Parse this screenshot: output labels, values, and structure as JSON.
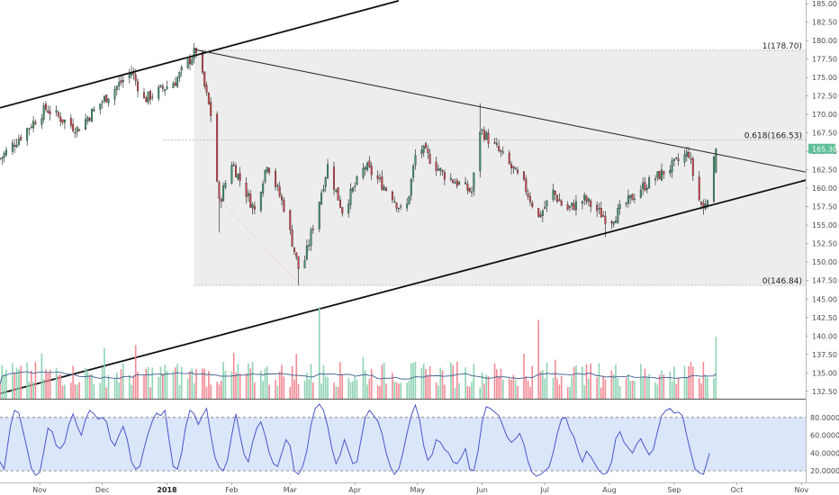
{
  "chart_data": {
    "type": "candlestick",
    "price_axis": {
      "range": [
        131.5,
        185.5
      ],
      "ticks": [
        "185.00",
        "182.50",
        "180.00",
        "177.50",
        "175.00",
        "172.50",
        "170.00",
        "167.50",
        "165.00",
        "162.50",
        "160.00",
        "157.50",
        "155.00",
        "152.50",
        "150.00",
        "147.50",
        "145.00",
        "142.50",
        "140.00",
        "137.50",
        "135.00",
        "132.50"
      ],
      "tick_values": [
        185,
        182.5,
        180,
        177.5,
        175,
        172.5,
        170,
        167.5,
        165,
        162.5,
        160,
        157.5,
        155,
        152.5,
        150,
        147.5,
        145,
        142.5,
        140,
        137.5,
        135,
        132.5
      ],
      "last_price_label": "165.30",
      "last_price": 165.3,
      "last_price_color": "#5fbf96"
    },
    "time_axis": {
      "labels": [
        "Nov",
        "Dec",
        "2018",
        "Feb",
        "Mar",
        "Apr",
        "May",
        "Jun",
        "Jul",
        "Aug",
        "Sep",
        "Oct",
        "Nov"
      ],
      "label_days": [
        -8,
        22,
        53,
        84,
        112,
        143,
        173,
        204,
        234,
        265,
        296,
        326,
        357
      ],
      "bold_labels": [
        "2018"
      ],
      "day_range": [
        -27,
        359
      ]
    },
    "fibonacci": [
      {
        "label": "1(178.70)",
        "value": 178.7
      },
      {
        "label": "0.618(166.53)",
        "value": 166.53
      },
      {
        "label": "0(146.84)",
        "value": 146.84
      }
    ],
    "trendlines": [
      {
        "name": "upper-channel",
        "from": [
          -27,
          170.9
        ],
        "to": [
          164,
          185.4
        ],
        "color": "#111111"
      },
      {
        "name": "descending-resistance",
        "from": [
          66,
          178.8
        ],
        "to": [
          359,
          162.2
        ],
        "color": "#333333"
      },
      {
        "name": "lower-channel",
        "from": [
          -27,
          132.2
        ],
        "to": [
          359,
          161.1
        ],
        "color": "#111111"
      }
    ],
    "anchors": [
      {
        "day": -27,
        "close": 164.0
      },
      {
        "day": -5,
        "close": 170.8
      },
      {
        "day": 10,
        "close": 168.0
      },
      {
        "day": 21,
        "close": 171.5
      },
      {
        "day": 36,
        "close": 175.8
      },
      {
        "day": 42,
        "close": 172.0
      },
      {
        "day": 57,
        "close": 174.5
      },
      {
        "day": 67,
        "close": 178.7
      },
      {
        "day": 74,
        "close": 170.0
      },
      {
        "day": 78,
        "close": 158.0
      },
      {
        "day": 84,
        "close": 163.5
      },
      {
        "day": 95,
        "close": 157.0
      },
      {
        "day": 101,
        "close": 163.5
      },
      {
        "day": 109,
        "close": 157.5
      },
      {
        "day": 117,
        "close": 148.0
      },
      {
        "day": 130,
        "close": 163.0
      },
      {
        "day": 137,
        "close": 157.0
      },
      {
        "day": 148,
        "close": 163.0
      },
      {
        "day": 161,
        "close": 159.0
      },
      {
        "day": 167,
        "close": 156.0
      },
      {
        "day": 173,
        "close": 166.0
      },
      {
        "day": 185,
        "close": 162.0
      },
      {
        "day": 199,
        "close": 159.5
      },
      {
        "day": 203,
        "close": 168.0
      },
      {
        "day": 212,
        "close": 165.0
      },
      {
        "day": 224,
        "close": 160.5
      },
      {
        "day": 231,
        "close": 156.0
      },
      {
        "day": 238,
        "close": 159.5
      },
      {
        "day": 244,
        "close": 157.0
      },
      {
        "day": 253,
        "close": 158.5
      },
      {
        "day": 265,
        "close": 155.5
      },
      {
        "day": 280,
        "close": 160.0
      },
      {
        "day": 295,
        "close": 163.0
      },
      {
        "day": 303,
        "close": 164.8
      },
      {
        "day": 307,
        "close": 159.0
      },
      {
        "day": 310,
        "close": 157.3
      },
      {
        "day": 313,
        "close": 160.0
      },
      {
        "day": 316,
        "close": 165.3
      }
    ],
    "volume_axis": {
      "range": [
        0,
        1
      ]
    },
    "stochastic": {
      "upper_band": 80,
      "lower_band": 20,
      "range": [
        8,
        98
      ],
      "ticks": [
        "80.0000",
        "60.0000",
        "40.0000",
        "20.0000"
      ],
      "tick_values": [
        80,
        60,
        40,
        20
      ],
      "band_fill": "#dbe6fb",
      "line_color": "#4a57c9",
      "points": [
        [
          -27,
          30
        ],
        [
          -25,
          22
        ],
        [
          -22,
          70
        ],
        [
          -20,
          88
        ],
        [
          -18,
          85
        ],
        [
          -15,
          55
        ],
        [
          -12,
          23
        ],
        [
          -10,
          15
        ],
        [
          -8,
          18
        ],
        [
          -6,
          42
        ],
        [
          -4,
          68
        ],
        [
          -2,
          64
        ],
        [
          0,
          48
        ],
        [
          2,
          45
        ],
        [
          4,
          52
        ],
        [
          6,
          72
        ],
        [
          8,
          84
        ],
        [
          10,
          70
        ],
        [
          12,
          60
        ],
        [
          14,
          78
        ],
        [
          16,
          88
        ],
        [
          18,
          84
        ],
        [
          20,
          78
        ],
        [
          22,
          80
        ],
        [
          24,
          75
        ],
        [
          26,
          55
        ],
        [
          28,
          48
        ],
        [
          30,
          60
        ],
        [
          32,
          70
        ],
        [
          34,
          55
        ],
        [
          36,
          30
        ],
        [
          38,
          22
        ],
        [
          40,
          25
        ],
        [
          42,
          45
        ],
        [
          44,
          62
        ],
        [
          46,
          76
        ],
        [
          48,
          85
        ],
        [
          50,
          82
        ],
        [
          52,
          88
        ],
        [
          54,
          55
        ],
        [
          56,
          25
        ],
        [
          58,
          22
        ],
        [
          60,
          40
        ],
        [
          62,
          70
        ],
        [
          64,
          88
        ],
        [
          66,
          84
        ],
        [
          68,
          72
        ],
        [
          70,
          82
        ],
        [
          72,
          90
        ],
        [
          74,
          60
        ],
        [
          76,
          35
        ],
        [
          78,
          24
        ],
        [
          80,
          20
        ],
        [
          82,
          32
        ],
        [
          84,
          60
        ],
        [
          86,
          84
        ],
        [
          88,
          60
        ],
        [
          90,
          38
        ],
        [
          92,
          30
        ],
        [
          94,
          52
        ],
        [
          96,
          68
        ],
        [
          98,
          75
        ],
        [
          100,
          60
        ],
        [
          102,
          40
        ],
        [
          104,
          28
        ],
        [
          106,
          25
        ],
        [
          108,
          40
        ],
        [
          110,
          55
        ],
        [
          112,
          48
        ],
        [
          114,
          20
        ],
        [
          116,
          16
        ],
        [
          118,
          25
        ],
        [
          120,
          42
        ],
        [
          122,
          72
        ],
        [
          124,
          90
        ],
        [
          126,
          95
        ],
        [
          128,
          88
        ],
        [
          130,
          70
        ],
        [
          132,
          45
        ],
        [
          134,
          28
        ],
        [
          136,
          38
        ],
        [
          138,
          55
        ],
        [
          140,
          42
        ],
        [
          142,
          28
        ],
        [
          144,
          30
        ],
        [
          146,
          55
        ],
        [
          148,
          80
        ],
        [
          150,
          88
        ],
        [
          152,
          82
        ],
        [
          154,
          76
        ],
        [
          156,
          62
        ],
        [
          158,
          40
        ],
        [
          160,
          25
        ],
        [
          162,
          16
        ],
        [
          164,
          22
        ],
        [
          166,
          40
        ],
        [
          168,
          62
        ],
        [
          170,
          82
        ],
        [
          172,
          94
        ],
        [
          174,
          78
        ],
        [
          176,
          48
        ],
        [
          178,
          32
        ],
        [
          180,
          38
        ],
        [
          182,
          55
        ],
        [
          184,
          52
        ],
        [
          186,
          44
        ],
        [
          188,
          40
        ],
        [
          190,
          30
        ],
        [
          192,
          28
        ],
        [
          194,
          35
        ],
        [
          196,
          45
        ],
        [
          198,
          22
        ],
        [
          200,
          20
        ],
        [
          202,
          42
        ],
        [
          204,
          75
        ],
        [
          206,
          92
        ],
        [
          208,
          90
        ],
        [
          210,
          86
        ],
        [
          212,
          82
        ],
        [
          214,
          70
        ],
        [
          216,
          58
        ],
        [
          218,
          52
        ],
        [
          220,
          56
        ],
        [
          222,
          62
        ],
        [
          224,
          50
        ],
        [
          226,
          30
        ],
        [
          228,
          18
        ],
        [
          230,
          14
        ],
        [
          232,
          16
        ],
        [
          234,
          20
        ],
        [
          236,
          24
        ],
        [
          238,
          40
        ],
        [
          240,
          62
        ],
        [
          242,
          78
        ],
        [
          244,
          80
        ],
        [
          246,
          66
        ],
        [
          248,
          58
        ],
        [
          250,
          42
        ],
        [
          252,
          30
        ],
        [
          254,
          42
        ],
        [
          256,
          36
        ],
        [
          258,
          28
        ],
        [
          260,
          20
        ],
        [
          262,
          16
        ],
        [
          264,
          18
        ],
        [
          266,
          30
        ],
        [
          268,
          56
        ],
        [
          270,
          64
        ],
        [
          272,
          52
        ],
        [
          274,
          46
        ],
        [
          276,
          40
        ],
        [
          278,
          50
        ],
        [
          280,
          56
        ],
        [
          282,
          46
        ],
        [
          284,
          38
        ],
        [
          286,
          44
        ],
        [
          288,
          64
        ],
        [
          290,
          82
        ],
        [
          292,
          88
        ],
        [
          294,
          90
        ],
        [
          296,
          85
        ],
        [
          298,
          86
        ],
        [
          300,
          82
        ],
        [
          302,
          60
        ],
        [
          304,
          40
        ],
        [
          306,
          22
        ],
        [
          308,
          18
        ],
        [
          310,
          16
        ],
        [
          312,
          32
        ],
        [
          313,
          40
        ]
      ]
    }
  }
}
